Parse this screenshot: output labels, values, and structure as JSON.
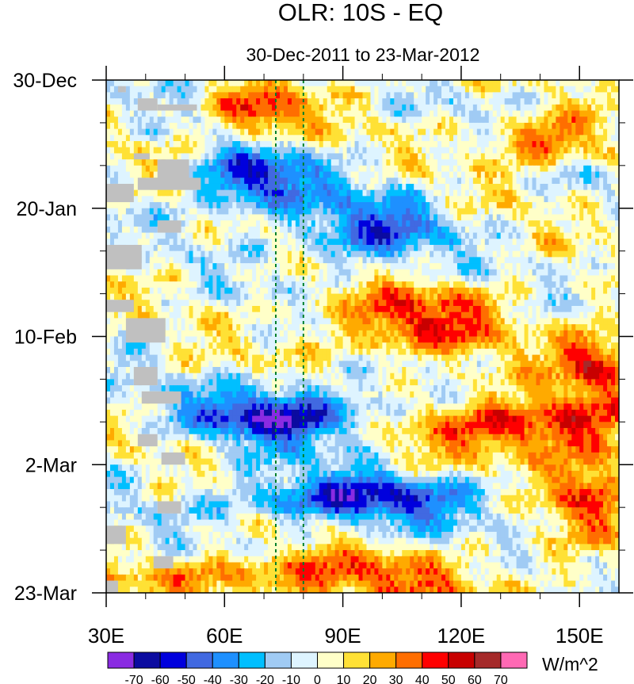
{
  "chart_data": {
    "type": "heatmap",
    "title": "OLR: 10S - EQ",
    "subtitle": "30-Dec-2011 to 23-Mar-2012",
    "xlabel": "",
    "ylabel": "",
    "xlim": [
      30,
      160
    ],
    "ylim_days": [
      0,
      84
    ],
    "x_ticks": [
      {
        "value": 30,
        "label": "30E"
      },
      {
        "value": 60,
        "label": "60E"
      },
      {
        "value": 90,
        "label": "90E"
      },
      {
        "value": 120,
        "label": "120E"
      },
      {
        "value": 150,
        "label": "150E"
      }
    ],
    "y_ticks": [
      {
        "day": 0,
        "label": "30-Dec"
      },
      {
        "day": 21,
        "label": "20-Jan"
      },
      {
        "day": 42,
        "label": "10-Feb"
      },
      {
        "day": 63,
        "label": "2-Mar"
      },
      {
        "day": 84,
        "label": "23-Mar"
      }
    ],
    "reference_lines_lon": [
      73,
      80
    ],
    "colorbar": {
      "units": "W/m^2",
      "levels": [
        -70,
        -60,
        -50,
        -40,
        -30,
        -20,
        -10,
        0,
        10,
        20,
        30,
        40,
        50,
        60,
        70
      ],
      "level_labels": [
        "-70",
        "-60",
        "-50",
        "-40",
        "-30",
        "-20",
        "-10",
        "0",
        "10",
        "20",
        "30",
        "40",
        "50",
        "60",
        "70"
      ],
      "colors": [
        "#8a2be2",
        "#0b0ba0",
        "#0000dd",
        "#4169e1",
        "#1e90ff",
        "#00bfff",
        "#a0cbf4",
        "#def4ff",
        "#ffffc8",
        "#ffe135",
        "#ffaa00",
        "#ff6e00",
        "#ff0000",
        "#c80000",
        "#a52a2a",
        "#ff69b4"
      ]
    },
    "missing_color": "#c0c0c0",
    "anomaly_features": [
      {
        "lon": [
          60,
          78
        ],
        "day": [
          3,
          8
        ],
        "value": 45
      },
      {
        "lon": [
          130,
          152
        ],
        "day": [
          8,
          12
        ],
        "value": 42
      },
      {
        "lon": [
          57,
          78
        ],
        "day": [
          13,
          20
        ],
        "value": -58
      },
      {
        "lon": [
          82,
          112
        ],
        "day": [
          20,
          29
        ],
        "value": -42
      },
      {
        "lon": [
          88,
          130
        ],
        "day": [
          35,
          44
        ],
        "value": 42
      },
      {
        "lon": [
          148,
          160
        ],
        "day": [
          42,
          50
        ],
        "value": 48
      },
      {
        "lon": [
          55,
          95
        ],
        "day": [
          52,
          58
        ],
        "value": -62
      },
      {
        "lon": [
          112,
          160
        ],
        "day": [
          53,
          60
        ],
        "value": 52
      },
      {
        "lon": [
          65,
          125
        ],
        "day": [
          66,
          71
        ],
        "value": -52
      },
      {
        "lon": [
          145,
          160
        ],
        "day": [
          62,
          72
        ],
        "value": 48
      },
      {
        "lon": [
          40,
          128
        ],
        "day": [
          79,
          84
        ],
        "value": 38
      }
    ]
  }
}
